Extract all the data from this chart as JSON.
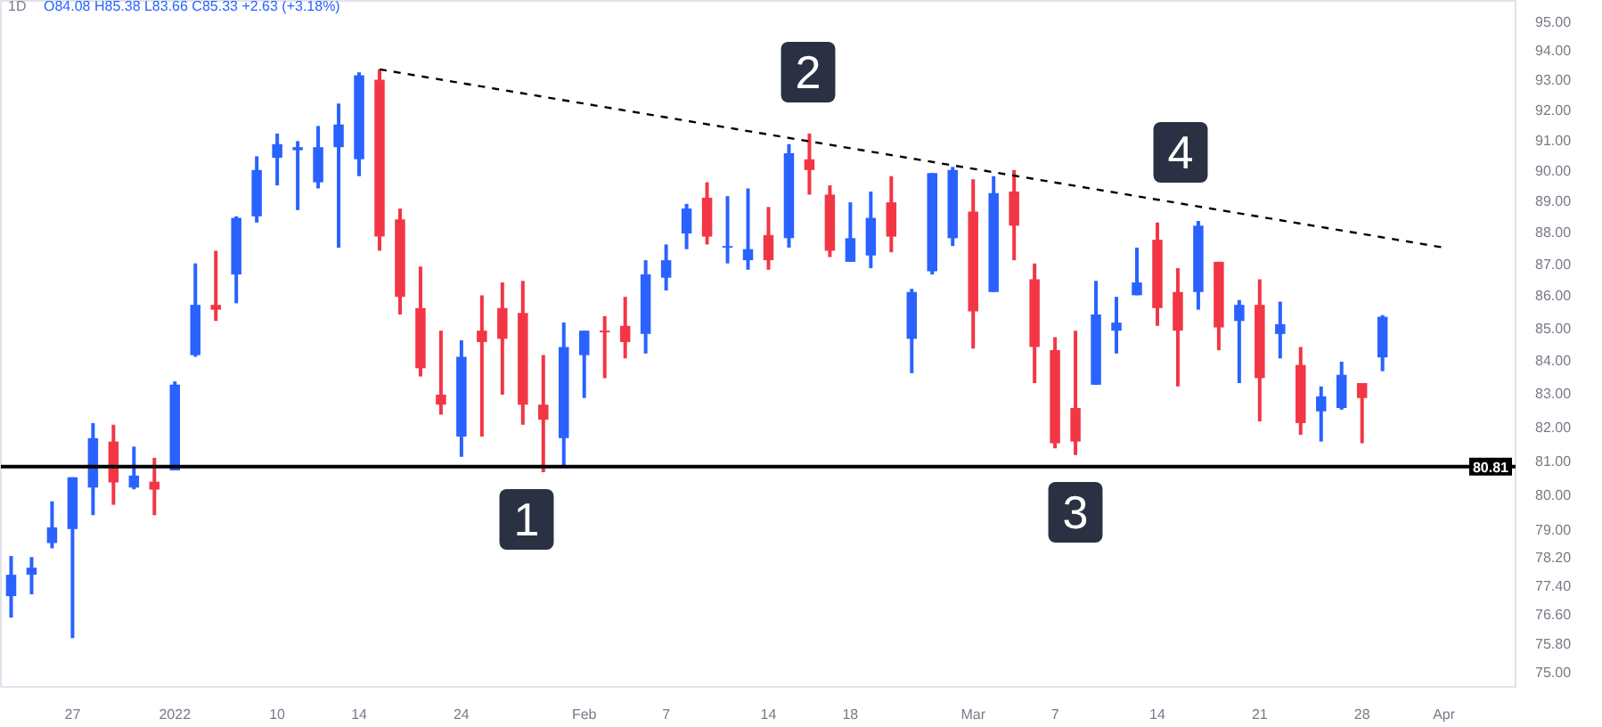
{
  "chart_data": {
    "type": "candlestick",
    "title": "1D",
    "subtitle": "O84.08 H85.38 L83.66 C85.33 +2.63 (+3.18%)",
    "categories": [
      null,
      null,
      null,
      "27",
      null,
      null,
      null,
      null,
      "2022",
      null,
      null,
      null,
      null,
      "10",
      null,
      null,
      null,
      "14",
      null,
      null,
      null,
      null,
      "24",
      null,
      null,
      null,
      null,
      null,
      "Feb",
      null,
      null,
      null,
      "7",
      null,
      null,
      null,
      null,
      "14",
      null,
      null,
      null,
      "18",
      null,
      null,
      null,
      null,
      null,
      "Mar",
      null,
      null,
      null,
      "7",
      null,
      null,
      null,
      null,
      "14",
      null,
      null,
      null,
      null,
      "21",
      null,
      null,
      null,
      null,
      "28",
      null,
      null,
      null,
      "Apr",
      null,
      null,
      null
    ],
    "ohlc": [
      [
        77.1,
        78.23,
        76.5,
        77.7
      ],
      [
        77.7,
        78.2,
        77.15,
        77.9
      ],
      [
        78.6,
        79.8,
        78.45,
        79.05
      ],
      [
        79.0,
        80.5,
        75.93,
        80.5
      ],
      [
        80.2,
        82.1,
        79.4,
        81.65
      ],
      [
        81.55,
        82.05,
        79.7,
        80.35
      ],
      [
        80.2,
        81.4,
        80.15,
        80.55
      ],
      [
        80.37,
        81.07,
        79.4,
        80.14
      ],
      [
        80.7,
        83.35,
        80.7,
        83.25
      ],
      [
        84.15,
        87.0,
        84.1,
        85.7
      ],
      [
        85.7,
        87.4,
        85.2,
        85.55
      ],
      [
        86.65,
        88.5,
        85.75,
        88.45
      ],
      [
        88.5,
        90.45,
        88.3,
        90.0
      ],
      [
        90.4,
        91.2,
        89.5,
        90.85
      ],
      [
        90.65,
        90.95,
        88.7,
        90.75
      ],
      [
        89.6,
        91.45,
        89.4,
        90.75
      ],
      [
        90.75,
        92.2,
        87.5,
        91.5
      ],
      [
        90.35,
        93.25,
        89.8,
        93.15
      ],
      [
        93.0,
        93.35,
        87.4,
        87.85
      ],
      [
        88.4,
        88.75,
        85.4,
        85.95
      ],
      [
        85.6,
        86.9,
        83.5,
        83.75
      ],
      [
        82.95,
        84.9,
        82.35,
        82.65
      ],
      [
        81.7,
        84.6,
        81.1,
        84.1
      ],
      [
        84.9,
        86.0,
        81.7,
        84.55
      ],
      [
        85.6,
        86.4,
        82.95,
        84.65
      ],
      [
        85.45,
        86.45,
        82.05,
        82.65
      ],
      [
        82.65,
        84.15,
        80.65,
        82.2
      ],
      [
        81.65,
        85.15,
        80.8,
        84.4
      ],
      [
        84.15,
        84.9,
        82.85,
        84.9
      ],
      [
        84.9,
        85.35,
        83.45,
        84.85
      ],
      [
        85.05,
        85.95,
        84.05,
        84.55
      ],
      [
        84.8,
        87.1,
        84.2,
        86.65
      ],
      [
        86.55,
        87.6,
        86.15,
        87.1
      ],
      [
        87.95,
        88.9,
        87.45,
        88.75
      ],
      [
        89.1,
        89.6,
        87.6,
        87.85
      ],
      [
        87.5,
        89.15,
        87.0,
        87.55
      ],
      [
        87.1,
        89.4,
        86.8,
        87.45
      ],
      [
        87.9,
        88.8,
        86.8,
        87.1
      ],
      [
        87.8,
        90.85,
        87.5,
        90.55
      ],
      [
        90.35,
        91.2,
        89.2,
        90.0
      ],
      [
        89.2,
        89.5,
        87.2,
        87.4
      ],
      [
        87.05,
        88.95,
        87.05,
        87.8
      ],
      [
        87.25,
        89.3,
        86.85,
        88.45
      ],
      [
        88.95,
        89.8,
        87.35,
        87.85
      ],
      [
        84.65,
        86.2,
        83.6,
        86.1
      ],
      [
        86.75,
        89.9,
        86.65,
        89.9
      ],
      [
        87.8,
        90.1,
        87.55,
        90.0
      ],
      [
        88.65,
        89.7,
        84.35,
        85.5
      ],
      [
        86.1,
        89.8,
        86.1,
        89.25
      ],
      [
        89.3,
        90.0,
        87.1,
        88.2
      ],
      [
        86.5,
        87.0,
        83.3,
        84.4
      ],
      [
        84.3,
        84.7,
        81.35,
        81.5
      ],
      [
        82.55,
        84.9,
        81.15,
        81.55
      ],
      [
        83.25,
        86.45,
        83.25,
        85.4
      ],
      [
        84.9,
        85.95,
        84.2,
        85.15
      ],
      [
        86.0,
        87.5,
        86.0,
        86.4
      ],
      [
        87.75,
        88.3,
        85.05,
        85.6
      ],
      [
        86.1,
        86.85,
        83.2,
        84.9
      ],
      [
        86.1,
        88.35,
        85.55,
        88.2
      ],
      [
        87.05,
        87.05,
        84.3,
        85.0
      ],
      [
        85.2,
        85.85,
        83.3,
        85.7
      ],
      [
        85.7,
        86.5,
        82.15,
        83.45
      ],
      [
        84.8,
        85.8,
        84.05,
        85.1
      ],
      [
        83.85,
        84.4,
        81.75,
        82.1
      ],
      [
        82.45,
        83.2,
        81.55,
        82.9
      ],
      [
        82.55,
        83.95,
        82.5,
        83.55
      ],
      [
        83.3,
        83.3,
        81.5,
        82.85
      ],
      [
        84.08,
        85.38,
        83.66,
        85.33
      ],
      null,
      null,
      null,
      null,
      null,
      null
    ],
    "colors": [
      "#2962ff",
      "#2962ff",
      "#2962ff",
      "#2962ff",
      "#2962ff",
      "#f23645",
      "#2962ff",
      "#f23645",
      "#2962ff",
      "#2962ff",
      "#f23645",
      "#2962ff",
      "#2962ff",
      "#2962ff",
      "#2962ff",
      "#2962ff",
      "#2962ff",
      "#2962ff",
      "#f23645",
      "#f23645",
      "#f23645",
      "#f23645",
      "#2962ff",
      "#f23645",
      "#f23645",
      "#f23645",
      "#f23645",
      "#2962ff",
      "#2962ff",
      "#f23645",
      "#f23645",
      "#2962ff",
      "#2962ff",
      "#2962ff",
      "#f23645",
      "#2962ff",
      "#2962ff",
      "#f23645",
      "#2962ff",
      "#f23645",
      "#f23645",
      "#2962ff",
      "#2962ff",
      "#f23645",
      "#2962ff",
      "#2962ff",
      "#2962ff",
      "#f23645",
      "#2962ff",
      "#f23645",
      "#f23645",
      "#f23645",
      "#f23645",
      "#2962ff",
      "#2962ff",
      "#2962ff",
      "#f23645",
      "#f23645",
      "#2962ff",
      "#f23645",
      "#2962ff",
      "#f23645",
      "#2962ff",
      "#f23645",
      "#2962ff",
      "#2962ff",
      "#f23645",
      "#2962ff",
      null,
      null,
      null,
      null,
      null,
      null
    ],
    "series": [
      {
        "type": "line",
        "color": "#000000",
        "line_style": "dashed",
        "values": [
          null,
          null,
          null,
          null,
          null,
          null,
          null,
          null,
          null,
          null,
          null,
          null,
          null,
          null,
          null,
          null,
          null,
          null,
          93.35,
          null,
          null,
          null,
          null,
          null,
          null,
          null,
          null,
          null,
          null,
          null,
          null,
          null,
          null,
          null,
          null,
          null,
          null,
          null,
          null,
          null,
          null,
          null,
          null,
          null,
          null,
          null,
          null,
          null,
          null,
          null,
          null,
          null,
          null,
          null,
          null,
          null,
          null,
          null,
          null,
          null,
          null,
          null,
          null,
          null,
          null,
          null,
          null,
          null,
          null,
          null,
          87.5,
          null,
          null,
          null
        ]
      }
    ],
    "ref_lines": [
      {
        "axis": "y",
        "value": 80.81,
        "label": "80.81",
        "color": "#000000"
      }
    ],
    "annotations": [
      "1",
      "2",
      "3",
      "4"
    ],
    "log": true,
    "ylim": [
      74.6,
      95.7
    ],
    "yticks": [
      {
        "value": 75,
        "label": "75.00"
      },
      {
        "value": 75.8,
        "label": "75.80"
      },
      {
        "value": 76.6,
        "label": "76.60"
      },
      {
        "value": 77.4,
        "label": "77.40"
      },
      {
        "value": 78.2,
        "label": "78.20"
      },
      {
        "value": 79,
        "label": "79.00"
      },
      {
        "value": 80,
        "label": "80.00"
      },
      {
        "value": 81,
        "label": "81.00"
      },
      {
        "value": 82,
        "label": "82.00"
      },
      {
        "value": 83,
        "label": "83.00"
      },
      {
        "value": 84,
        "label": "84.00"
      },
      {
        "value": 85,
        "label": "85.00"
      },
      {
        "value": 86,
        "label": "86.00"
      },
      {
        "value": 87,
        "label": "87.00"
      },
      {
        "value": 88,
        "label": "88.00"
      },
      {
        "value": 89,
        "label": "89.00"
      },
      {
        "value": 90,
        "label": "90.00"
      },
      {
        "value": 91,
        "label": "91.00"
      },
      {
        "value": 92,
        "label": "92.00"
      },
      {
        "value": 93,
        "label": "93.00"
      },
      {
        "value": 94,
        "label": "94.00"
      },
      {
        "value": 95,
        "label": "95.00"
      }
    ]
  }
}
